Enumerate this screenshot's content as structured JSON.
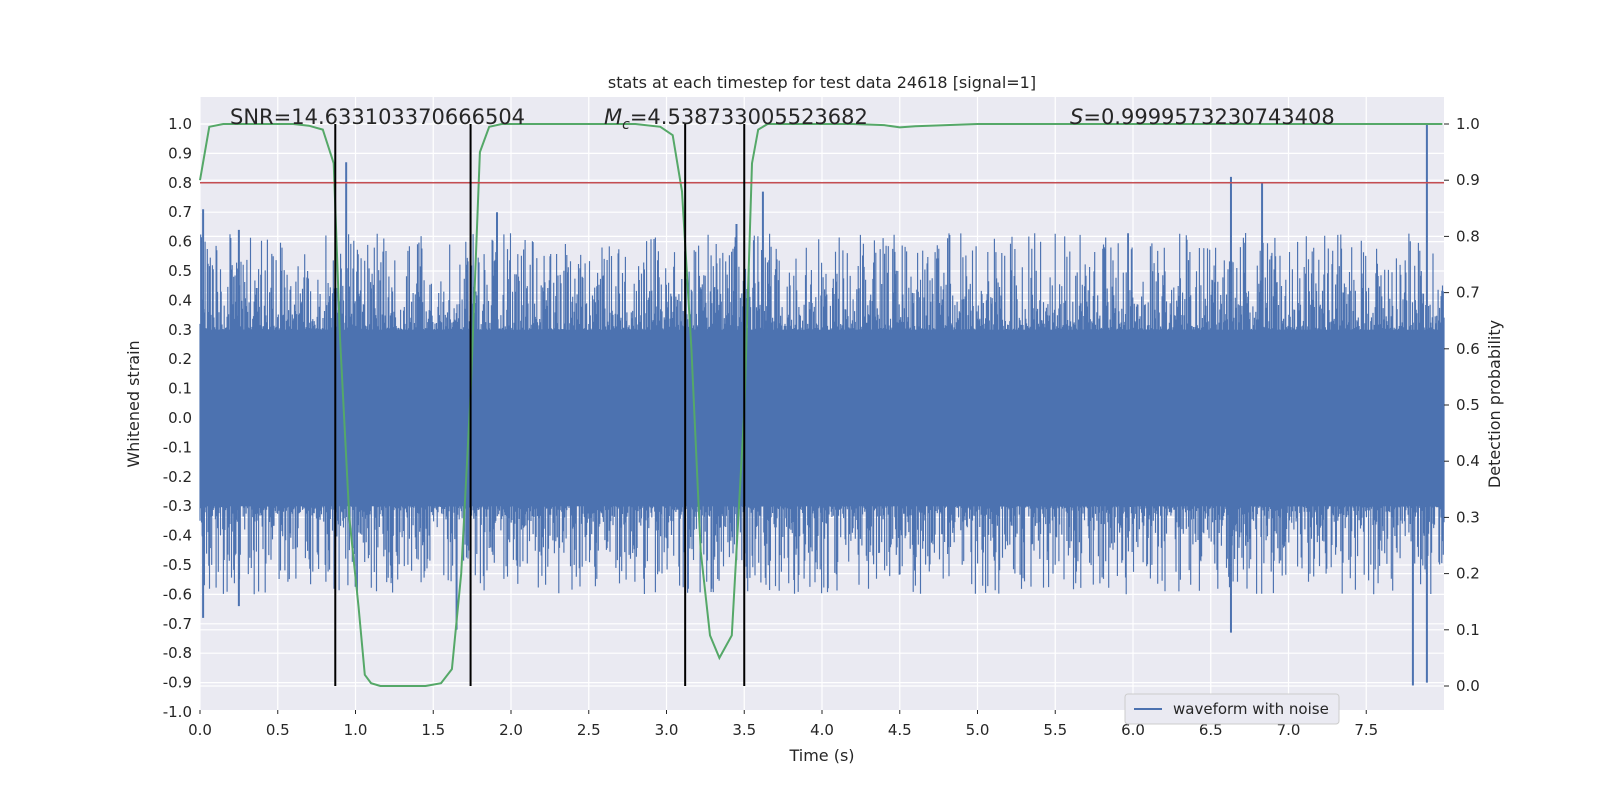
{
  "chart_data": {
    "type": "line",
    "title": "stats at each timestep for test data 24618 [signal=1]",
    "xlabel": "Time (s)",
    "ylabel": "Whitened strain",
    "ylabel_right": "Detection probability",
    "xlim": [
      0.0,
      8.0
    ],
    "ylim": [
      -1.0,
      1.0
    ],
    "ylim_right": [
      0.0,
      1.0
    ],
    "x_ticks": [
      "0.0",
      "0.5",
      "1.0",
      "1.5",
      "2.0",
      "2.5",
      "3.0",
      "3.5",
      "4.0",
      "4.5",
      "5.0",
      "5.5",
      "6.0",
      "6.5",
      "7.0",
      "7.5"
    ],
    "y_ticks": [
      "-1.0",
      "-0.9",
      "-0.8",
      "-0.7",
      "-0.6",
      "-0.5",
      "-0.4",
      "-0.3",
      "-0.2",
      "-0.1",
      "0.0",
      "0.1",
      "0.2",
      "0.3",
      "0.4",
      "0.5",
      "0.6",
      "0.7",
      "0.8",
      "0.9",
      "1.0"
    ],
    "y_ticks_right": [
      "0.0",
      "0.1",
      "0.2",
      "0.3",
      "0.4",
      "0.5",
      "0.6",
      "0.7",
      "0.8",
      "0.9",
      "1.0"
    ],
    "grid": true,
    "stats": {
      "snr": "SNR=14.633103370666504",
      "mc_symbol": "M",
      "mc_sub": "c",
      "mc_value": "=4.538733005523682",
      "s_symbol": "S",
      "s_value": "=0.9999573230743408"
    },
    "threshold_line": {
      "y": 0.8,
      "color": "#c44e52"
    },
    "boundary_lines_x": [
      0.87,
      1.74,
      3.12,
      3.5
    ],
    "series": [
      {
        "name": "waveform with noise",
        "color": "#4c72b0",
        "axis": "left",
        "x_range": [
          0.0,
          8.0
        ],
        "core_band": [
          -0.3,
          0.3
        ],
        "spikes": [
          {
            "x": 0.02,
            "y": 0.71
          },
          {
            "x": 0.02,
            "y": -0.68
          },
          {
            "x": 0.25,
            "y": 0.64
          },
          {
            "x": 0.25,
            "y": -0.64
          },
          {
            "x": 0.94,
            "y": 0.87
          },
          {
            "x": 1.65,
            "y": -0.72
          },
          {
            "x": 1.91,
            "y": 0.7
          },
          {
            "x": 3.45,
            "y": 0.66
          },
          {
            "x": 3.62,
            "y": 0.77
          },
          {
            "x": 6.63,
            "y": 0.82
          },
          {
            "x": 6.63,
            "y": -0.73
          },
          {
            "x": 6.83,
            "y": 0.8
          },
          {
            "x": 7.8,
            "y": -0.91
          },
          {
            "x": 7.89,
            "y": 1.0
          },
          {
            "x": 7.89,
            "y": -0.9
          }
        ]
      },
      {
        "name": "detection probability",
        "color": "#55a868",
        "axis": "right",
        "x": [
          0.0,
          0.06,
          0.15,
          0.3,
          0.5,
          0.6,
          0.7,
          0.79,
          0.86,
          0.9,
          0.96,
          1.02,
          1.06,
          1.1,
          1.16,
          1.3,
          1.45,
          1.55,
          1.62,
          1.68,
          1.74,
          1.8,
          1.86,
          1.94,
          2.1,
          2.5,
          2.8,
          2.96,
          3.04,
          3.1,
          3.16,
          3.22,
          3.28,
          3.34,
          3.42,
          3.5,
          3.55,
          3.59,
          3.65,
          3.8,
          4.2,
          4.4,
          4.5,
          4.6,
          4.8,
          5.0,
          6.0,
          7.0,
          7.5,
          7.99
        ],
        "y": [
          0.9,
          0.995,
          1.0,
          1.0,
          1.0,
          1.0,
          0.997,
          0.99,
          0.93,
          0.62,
          0.3,
          0.14,
          0.02,
          0.005,
          0.0,
          0.0,
          0.0,
          0.005,
          0.03,
          0.2,
          0.52,
          0.95,
          0.995,
          1.0,
          1.0,
          1.0,
          1.0,
          0.995,
          0.98,
          0.88,
          0.6,
          0.24,
          0.09,
          0.05,
          0.09,
          0.49,
          0.93,
          0.99,
          1.0,
          1.0,
          1.0,
          0.998,
          0.994,
          0.996,
          0.998,
          1.0,
          1.0,
          1.0,
          1.0,
          1.0
        ]
      }
    ],
    "legend": {
      "entries": [
        "waveform with noise"
      ],
      "placement": "lower-right"
    }
  }
}
